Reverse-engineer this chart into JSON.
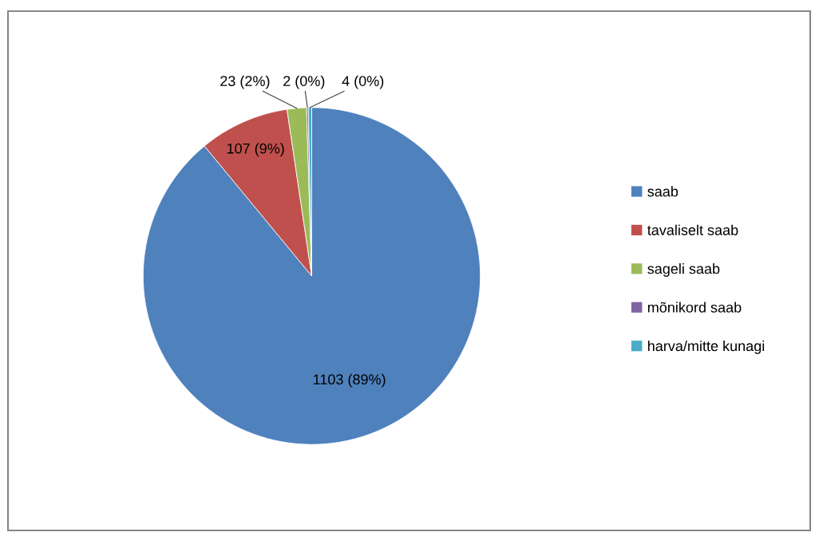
{
  "chart_data": {
    "type": "pie",
    "categories": [
      "saab",
      "tavaliselt saab",
      "sageli saab",
      "mõnikord saab",
      "harva/mitte kunagi"
    ],
    "values": [
      1103,
      107,
      23,
      2,
      4
    ],
    "colors": [
      "#4f81bd",
      "#c0504d",
      "#9bbb59",
      "#8064a2",
      "#4bacc6"
    ],
    "value_labels": [
      "1103 (89%)",
      "107 (9%)",
      "23 (2%)",
      "2 (0%)",
      "4 (0%)"
    ],
    "legend": "right"
  }
}
